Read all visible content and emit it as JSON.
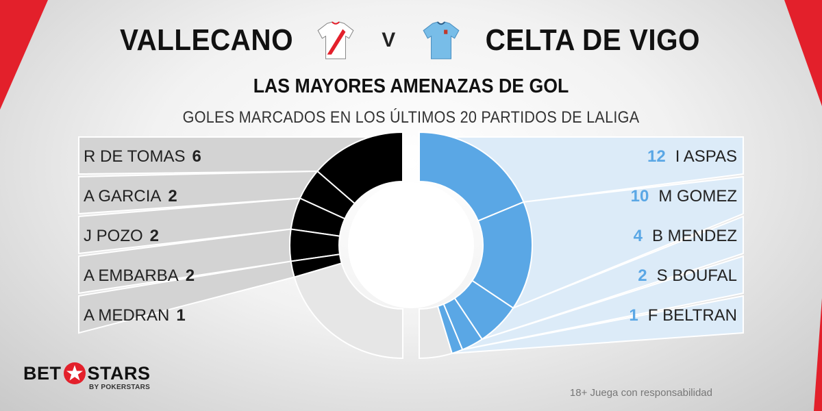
{
  "header": {
    "home_team": "VALLECANO",
    "versus": "V",
    "away_team": "CELTA DE VIGO"
  },
  "title": "LAS MAYORES AMENAZAS DE GOL",
  "subtitle": "GOLES MARCADOS EN LOS ÚLTIMOS 20 PARTIDOS DE LALIGA",
  "chart_data": [
    {
      "type": "pie",
      "variant": "half-donut-left",
      "team": "VALLECANO",
      "categories": [
        "R DE TOMAS",
        "A GARCIA",
        "J POZO",
        "A EMBARBA",
        "A MEDRAN"
      ],
      "values": [
        6,
        2,
        2,
        2,
        1
      ],
      "remaining_arc": "other",
      "colors": {
        "segment": "#000000",
        "other": "#e6e6e6",
        "panel": "#d3d3d3"
      }
    },
    {
      "type": "pie",
      "variant": "half-donut-right",
      "team": "CELTA DE VIGO",
      "categories": [
        "I ASPAS",
        "M GOMEZ",
        "B MENDEZ",
        "S BOUFAL",
        "F BELTRAN"
      ],
      "values": [
        12,
        10,
        4,
        2,
        1
      ],
      "remaining_arc": "other",
      "colors": {
        "segment": "#5aa7e5",
        "other": "#e6e6e6",
        "panel": "#dcebf8"
      }
    }
  ],
  "left_labels": [
    {
      "name": "R DE TOMAS",
      "value": "6"
    },
    {
      "name": "A GARCIA",
      "value": "2"
    },
    {
      "name": "J POZO",
      "value": "2"
    },
    {
      "name": "A EMBARBA",
      "value": "2"
    },
    {
      "name": "A MEDRAN",
      "value": "1"
    }
  ],
  "right_labels": [
    {
      "name": "I ASPAS",
      "value": "12"
    },
    {
      "name": "M GOMEZ",
      "value": "10"
    },
    {
      "name": "B MENDEZ",
      "value": "4"
    },
    {
      "name": "S BOUFAL",
      "value": "2"
    },
    {
      "name": "F BELTRAN",
      "value": "1"
    }
  ],
  "logo": {
    "main_left": "BET",
    "main_right": "STARS",
    "sub": "BY POKERSTARS"
  },
  "disclaimer": "18+ Juega con responsabilidad",
  "colors": {
    "accent_red": "#e3202b",
    "celta_blue": "#5aa7e5"
  }
}
